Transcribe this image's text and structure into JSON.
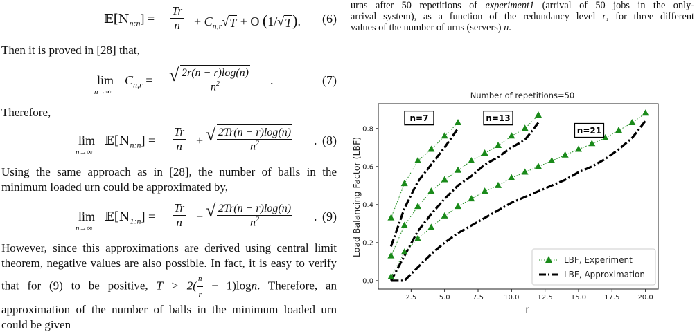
{
  "paper": {
    "eq6": {
      "lhs": "𝔼[N",
      "sub": "n:n",
      "mid": "] =",
      "tr": "Tr",
      "n": "n",
      "c": "C",
      "csub": "n,r",
      "sqrtT": "T",
      "o": "+ O",
      "inv": "1/",
      "num": "(6)"
    },
    "p1": "Then it is proved in [28] that,",
    "eq7": {
      "lim": "lim",
      "limsub": "n→∞",
      "c": "C",
      "csub": "n,r",
      "eqs": "=",
      "numer": "2r(n − r)log(n)",
      "denom": "n",
      "num": "(7)"
    },
    "p2": "Therefore,",
    "eq8": {
      "lim": "lim",
      "limsub": "n→∞",
      "e": "𝔼[N",
      "sub": "n:n",
      "close": "] =",
      "tr": "Tr",
      "n": "n",
      "plus": "+",
      "numer": "2Tr(n − r)log(n)",
      "denom": "n",
      "num": "(8)"
    },
    "p3": "Using the same approach as in [28], the number of balls in the minimum loaded urn could be approximated by,",
    "eq9": {
      "lim": "lim",
      "limsub": "n→∞",
      "e": "𝔼[N",
      "sub": "1:n",
      "close": "] =",
      "tr": "Tr",
      "n": "n",
      "minus": "−",
      "numer": "2Tr(n − r)log(n)",
      "denom": "n",
      "num": "(9)"
    },
    "p4a": "However, since this approximations are derived using central limit theorem, negative values are also possible. In fact, it is easy to verify that for (9) to be positive,",
    "p4b": "T > 2(",
    "p4c": "n",
    "p4d": "r",
    "p4e": " − 1)log",
    "p4f": "n",
    "p4g": ". Therefore, an approximation of the number of balls in the minimum loaded urn could be given"
  },
  "caption": {
    "line1a": "urns after 50 repetitions of ",
    "line1b": "experiment1",
    "line1c": " (arrival of 50 jobs in the only-",
    "line2a": "arrival system), as a function of the redundancy level ",
    "line2b": "r",
    "line2c": ", for three different",
    "line3a": "values of the number of urns (servers) ",
    "line3b": "n",
    "line3c": "."
  },
  "chart_data": {
    "type": "line",
    "title": "Number of repetitions=50",
    "xlabel": "r",
    "ylabel": "Load Balancing Factor (LBF)",
    "xlim": [
      0.05,
      20.95
    ],
    "ylim": [
      -0.044,
      0.93
    ],
    "xticks": [
      "2.5",
      "5.0",
      "7.5",
      "10.0",
      "12.5",
      "15.0",
      "17.5",
      "20.0"
    ],
    "yticks": [
      "0.0",
      "0.2",
      "0.4",
      "0.6",
      "0.8"
    ],
    "legend": {
      "placement": "bottom-right",
      "experiment": "LBF, Experiment",
      "approximation": "LBF, Approximation"
    },
    "colors": {
      "experiment": "#1a8a1a",
      "approximation": "#000000"
    },
    "groups": [
      {
        "label": "n=7",
        "experiment": {
          "x": [
            1,
            2,
            3,
            4,
            5,
            6
          ],
          "y": [
            0.33,
            0.51,
            0.63,
            0.69,
            0.76,
            0.83
          ]
        },
        "approximation": {
          "x": [
            1,
            2,
            3,
            4,
            5,
            6
          ],
          "y": [
            0.18,
            0.38,
            0.52,
            0.61,
            0.7,
            0.8
          ]
        }
      },
      {
        "label": "n=13",
        "experiment": {
          "x": [
            1,
            2,
            3,
            4,
            5,
            6,
            7,
            8,
            9,
            10,
            11,
            12
          ],
          "y": [
            0.13,
            0.29,
            0.39,
            0.47,
            0.53,
            0.58,
            0.63,
            0.67,
            0.71,
            0.76,
            0.8,
            0.87
          ]
        },
        "approximation": {
          "x": [
            1,
            2,
            3,
            4,
            5,
            6,
            7,
            8,
            9,
            10,
            11,
            12
          ],
          "y": [
            0.0,
            0.13,
            0.26,
            0.35,
            0.43,
            0.5,
            0.55,
            0.61,
            0.65,
            0.7,
            0.74,
            0.83
          ]
        }
      },
      {
        "label": "n=21",
        "experiment": {
          "x": [
            1,
            2,
            3,
            4,
            5,
            6,
            7,
            8,
            9,
            10,
            11,
            12,
            13,
            14,
            15,
            16,
            17,
            18,
            19,
            20
          ],
          "y": [
            0.02,
            0.15,
            0.22,
            0.28,
            0.34,
            0.39,
            0.43,
            0.47,
            0.5,
            0.54,
            0.57,
            0.6,
            0.63,
            0.66,
            0.69,
            0.72,
            0.75,
            0.79,
            0.83,
            0.88
          ]
        },
        "approximation": {
          "x": [
            1,
            2,
            3,
            4,
            5,
            6,
            7,
            8,
            9,
            10,
            11,
            12,
            13,
            14,
            15,
            16,
            17,
            18,
            19,
            20
          ],
          "y": [
            0.0,
            0.0,
            0.07,
            0.14,
            0.2,
            0.25,
            0.29,
            0.33,
            0.37,
            0.41,
            0.44,
            0.47,
            0.5,
            0.53,
            0.57,
            0.6,
            0.64,
            0.69,
            0.75,
            0.84
          ]
        }
      }
    ]
  }
}
